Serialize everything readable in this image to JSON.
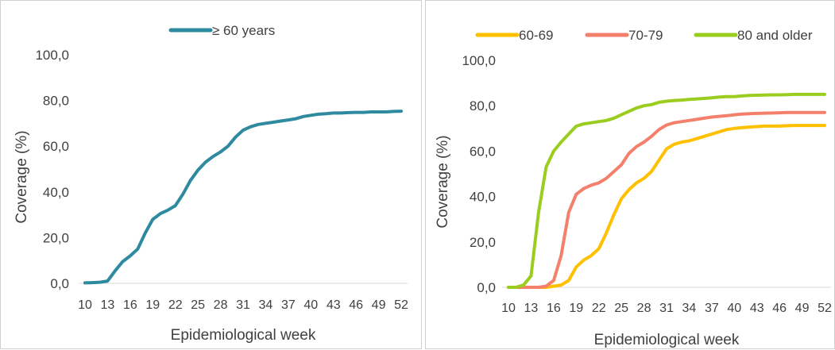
{
  "chart_data": [
    {
      "type": "line",
      "title": "",
      "xlabel": "Epidemiological week",
      "ylabel": "Coverage (%)",
      "ylim": [
        0,
        100
      ],
      "y_ticks": [
        "0,0",
        "20,0",
        "40,0",
        "60,0",
        "80,0",
        "100,0"
      ],
      "x_ticks": [
        "10",
        "13",
        "16",
        "19",
        "22",
        "25",
        "28",
        "31",
        "34",
        "37",
        "40",
        "43",
        "46",
        "49",
        "52"
      ],
      "xlim": [
        10,
        52
      ],
      "grid": false,
      "legend_position": "top",
      "x": [
        10,
        11,
        12,
        13,
        14,
        15,
        16,
        17,
        18,
        19,
        20,
        21,
        22,
        23,
        24,
        25,
        26,
        27,
        28,
        29,
        30,
        31,
        32,
        33,
        34,
        35,
        36,
        37,
        38,
        39,
        40,
        41,
        42,
        43,
        44,
        45,
        46,
        47,
        48,
        49,
        50,
        51,
        52
      ],
      "series": [
        {
          "name": "≥ 60 years",
          "color": "#2e8a9e",
          "values": [
            0.2,
            0.3,
            0.5,
            1,
            5.5,
            9.5,
            12,
            15,
            22,
            28,
            30.5,
            32,
            34,
            39,
            45,
            49.5,
            53,
            55.5,
            57.5,
            60,
            64,
            67,
            68.5,
            69.5,
            70,
            70.5,
            71,
            71.5,
            72,
            73,
            73.5,
            74,
            74.2,
            74.5,
            74.5,
            74.7,
            74.8,
            74.8,
            75,
            75,
            75,
            75.2,
            75.3
          ]
        }
      ]
    },
    {
      "type": "line",
      "title": "",
      "xlabel": "Epidemiological week",
      "ylabel": "Coverage (%)",
      "ylim": [
        0,
        100
      ],
      "y_ticks": [
        "0,0",
        "20,0",
        "40,0",
        "60,0",
        "80,0",
        "100,0"
      ],
      "x_ticks": [
        "10",
        "13",
        "16",
        "19",
        "22",
        "25",
        "28",
        "31",
        "34",
        "37",
        "40",
        "43",
        "46",
        "49",
        "52"
      ],
      "xlim": [
        10,
        52
      ],
      "grid": false,
      "legend_position": "top",
      "x": [
        10,
        11,
        12,
        13,
        14,
        15,
        16,
        17,
        18,
        19,
        20,
        21,
        22,
        23,
        24,
        25,
        26,
        27,
        28,
        29,
        30,
        31,
        32,
        33,
        34,
        35,
        36,
        37,
        38,
        39,
        40,
        41,
        42,
        43,
        44,
        45,
        46,
        47,
        48,
        49,
        50,
        51,
        52
      ],
      "series": [
        {
          "name": "60-69",
          "color": "#ffc000",
          "values": [
            0,
            0,
            0,
            0,
            0,
            0,
            0.5,
            1,
            3,
            9,
            12,
            14,
            17,
            24,
            32,
            39,
            43,
            46,
            48,
            51,
            56,
            61,
            63,
            64,
            64.5,
            65.5,
            66.5,
            67.5,
            68.5,
            69.5,
            70,
            70.3,
            70.6,
            70.8,
            71,
            71,
            71,
            71.2,
            71.3,
            71.3,
            71.3,
            71.3,
            71.3
          ]
        },
        {
          "name": "70-79",
          "color": "#f4806b",
          "values": [
            0,
            0,
            0,
            0,
            0,
            0.5,
            3,
            14,
            33,
            41,
            43.5,
            45,
            46,
            48,
            51,
            54,
            59,
            62,
            64,
            66.5,
            69.5,
            71.5,
            72.5,
            73,
            73.5,
            74,
            74.5,
            75,
            75.3,
            75.6,
            76,
            76.3,
            76.5,
            76.6,
            76.7,
            76.8,
            76.9,
            77,
            77,
            77,
            77,
            77,
            77
          ]
        },
        {
          "name": "80 and older",
          "color": "#9acd1e",
          "values": [
            0,
            0,
            1,
            5,
            33,
            53,
            60,
            64,
            67.5,
            71,
            72,
            72.5,
            73,
            73.5,
            74.5,
            76,
            77.5,
            79,
            80,
            80.5,
            81.5,
            82,
            82.3,
            82.5,
            82.8,
            83,
            83.2,
            83.5,
            83.8,
            84,
            84,
            84.3,
            84.5,
            84.6,
            84.7,
            84.8,
            84.8,
            84.9,
            85,
            85,
            85,
            85,
            85
          ]
        }
      ]
    }
  ]
}
